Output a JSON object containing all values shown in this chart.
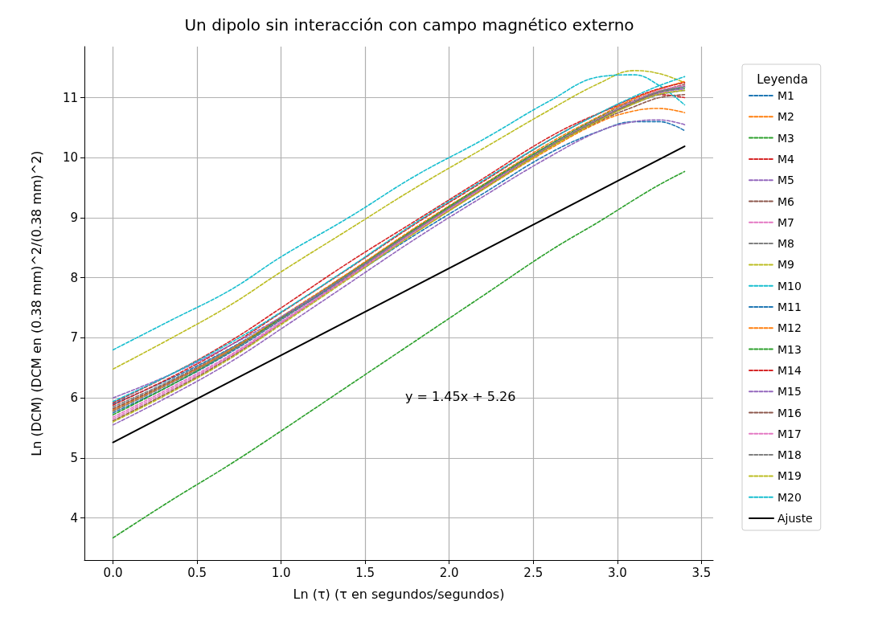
{
  "chart_data": {
    "type": "line",
    "title": "Un dipolo sin interacción con campo magnético externo",
    "xlabel": "Ln (τ) (τ en segundos/segundos)",
    "ylabel": "Ln (DCM) (DCM en (0.38 mm)^2/(0.38 mm)^2)",
    "legend_title": "Leyenda",
    "legend": "right",
    "grid": true,
    "line_style": "dashed",
    "annotations": [
      "y = 1.45x + 5.26"
    ],
    "xlim": [
      -0.17,
      3.57
    ],
    "xticks": [
      {
        "value": 0,
        "label": "0.0"
      },
      {
        "value": 0.5,
        "label": "0.5"
      },
      {
        "value": 1,
        "label": "1.0"
      },
      {
        "value": 1.5,
        "label": "1.5"
      },
      {
        "value": 2,
        "label": "2.0"
      },
      {
        "value": 2.5,
        "label": "2.5"
      },
      {
        "value": 3,
        "label": "3.0"
      },
      {
        "value": 3.5,
        "label": "3.5"
      }
    ],
    "ylim": [
      3.3,
      11.85
    ],
    "yticks": [
      4,
      5,
      6,
      7,
      8,
      9,
      10,
      11
    ],
    "x": [
      0,
      0.35,
      0.7,
      1.0,
      1.4,
      1.8,
      2.2,
      2.6,
      2.9,
      3.1,
      3.25,
      3.4
    ],
    "series": [
      {
        "name": "M1",
        "color": "#1f77b4",
        "values": [
          5.9,
          6.33,
          6.83,
          7.33,
          8.0,
          8.72,
          9.4,
          10.08,
          10.45,
          10.6,
          10.6,
          10.45
        ]
      },
      {
        "name": "M2",
        "color": "#ff7f0e",
        "values": [
          5.8,
          6.27,
          6.8,
          7.33,
          8.03,
          8.76,
          9.47,
          10.15,
          10.6,
          10.78,
          10.82,
          10.75
        ]
      },
      {
        "name": "M3",
        "color": "#2ca02c",
        "values": [
          3.67,
          4.3,
          4.9,
          5.45,
          6.2,
          6.95,
          7.7,
          8.45,
          8.95,
          9.3,
          9.55,
          9.77
        ]
      },
      {
        "name": "M4",
        "color": "#d62728",
        "values": [
          5.92,
          6.4,
          6.95,
          7.5,
          8.25,
          8.95,
          9.65,
          10.35,
          10.75,
          10.95,
          11.05,
          11.0
        ]
      },
      {
        "name": "M5",
        "color": "#9467bd",
        "values": [
          5.55,
          6.05,
          6.6,
          7.15,
          7.9,
          8.65,
          9.35,
          10.02,
          10.45,
          10.6,
          10.63,
          10.55
        ]
      },
      {
        "name": "M6",
        "color": "#8c564b",
        "values": [
          5.82,
          6.28,
          6.8,
          7.32,
          8.05,
          8.8,
          9.5,
          10.18,
          10.62,
          10.85,
          11.0,
          11.05
        ]
      },
      {
        "name": "M7",
        "color": "#e377c2",
        "values": [
          5.68,
          6.18,
          6.72,
          7.27,
          8.02,
          8.78,
          9.5,
          10.2,
          10.65,
          10.92,
          11.08,
          11.15
        ]
      },
      {
        "name": "M8",
        "color": "#7f7f7f",
        "values": [
          5.85,
          6.3,
          6.82,
          7.33,
          8.07,
          8.82,
          9.52,
          10.2,
          10.65,
          10.9,
          11.05,
          11.12
        ]
      },
      {
        "name": "M9",
        "color": "#bcbd22",
        "values": [
          6.48,
          7.0,
          7.55,
          8.1,
          8.8,
          9.5,
          10.15,
          10.8,
          11.25,
          11.45,
          11.4,
          11.25
        ]
      },
      {
        "name": "M10",
        "color": "#17becf",
        "values": [
          6.8,
          7.3,
          7.8,
          8.35,
          9.0,
          9.7,
          10.3,
          10.95,
          11.35,
          11.38,
          11.2,
          10.88
        ]
      },
      {
        "name": "M11",
        "color": "#1f77b4",
        "values": [
          5.75,
          6.22,
          6.76,
          7.3,
          8.04,
          8.8,
          9.52,
          10.22,
          10.68,
          10.95,
          11.1,
          11.18
        ]
      },
      {
        "name": "M12",
        "color": "#ff7f0e",
        "values": [
          5.78,
          6.26,
          6.8,
          7.35,
          8.08,
          8.84,
          9.55,
          10.25,
          10.7,
          10.98,
          11.14,
          11.27
        ]
      },
      {
        "name": "M13",
        "color": "#2ca02c",
        "values": [
          5.72,
          6.22,
          6.78,
          7.33,
          8.06,
          8.82,
          9.54,
          10.22,
          10.68,
          10.95,
          11.1,
          11.15
        ]
      },
      {
        "name": "M14",
        "color": "#d62728",
        "values": [
          5.88,
          6.35,
          6.88,
          7.42,
          8.15,
          8.9,
          9.6,
          10.3,
          10.75,
          11.0,
          11.15,
          11.25
        ]
      },
      {
        "name": "M15",
        "color": "#9467bd",
        "values": [
          6.0,
          6.4,
          6.88,
          7.35,
          8.05,
          8.8,
          9.5,
          10.18,
          10.65,
          10.92,
          11.08,
          11.15
        ]
      },
      {
        "name": "M16",
        "color": "#8c564b",
        "values": [
          5.62,
          6.12,
          6.68,
          7.24,
          8.0,
          8.76,
          9.48,
          10.18,
          10.65,
          10.92,
          11.1,
          11.22
        ]
      },
      {
        "name": "M17",
        "color": "#e377c2",
        "values": [
          5.65,
          6.15,
          6.7,
          7.25,
          8.0,
          8.77,
          9.5,
          10.2,
          10.67,
          10.95,
          11.12,
          11.2
        ]
      },
      {
        "name": "M18",
        "color": "#7f7f7f",
        "values": [
          5.78,
          6.25,
          6.78,
          7.31,
          8.05,
          8.8,
          9.52,
          10.2,
          10.66,
          10.93,
          11.1,
          11.18
        ]
      },
      {
        "name": "M19",
        "color": "#bcbd22",
        "values": [
          5.6,
          6.1,
          6.66,
          7.22,
          7.98,
          8.75,
          9.47,
          10.17,
          10.63,
          10.9,
          11.06,
          11.12
        ]
      },
      {
        "name": "M20",
        "color": "#17becf",
        "values": [
          5.94,
          6.4,
          6.92,
          7.43,
          8.16,
          8.92,
          9.62,
          10.3,
          10.75,
          11.02,
          11.2,
          11.35
        ]
      },
      {
        "name": "Ajuste",
        "color": "#000000",
        "line_style": "solid",
        "x": [
          0,
          3.4
        ],
        "values": [
          5.26,
          10.19
        ]
      }
    ]
  }
}
